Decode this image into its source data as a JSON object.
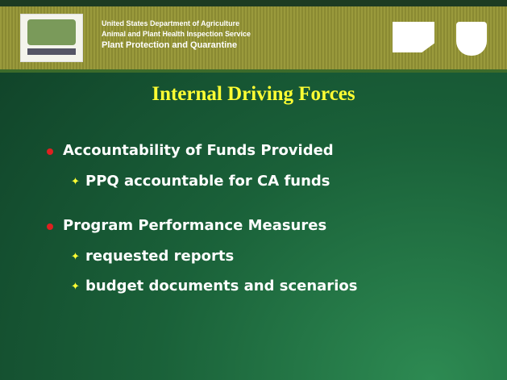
{
  "header": {
    "lines": [
      "United States Department of Agriculture",
      "Animal and Plant Health Inspection Service",
      "Plant Protection and Quarantine"
    ]
  },
  "slide": {
    "title": "Internal Driving Forces",
    "bullets": [
      {
        "text": "Accountability of Funds Provided",
        "items": [
          "PPQ accountable for CA funds"
        ]
      },
      {
        "text": "Program Performance Measures",
        "items": [
          "requested reports",
          "budget documents and scenarios"
        ]
      }
    ]
  }
}
